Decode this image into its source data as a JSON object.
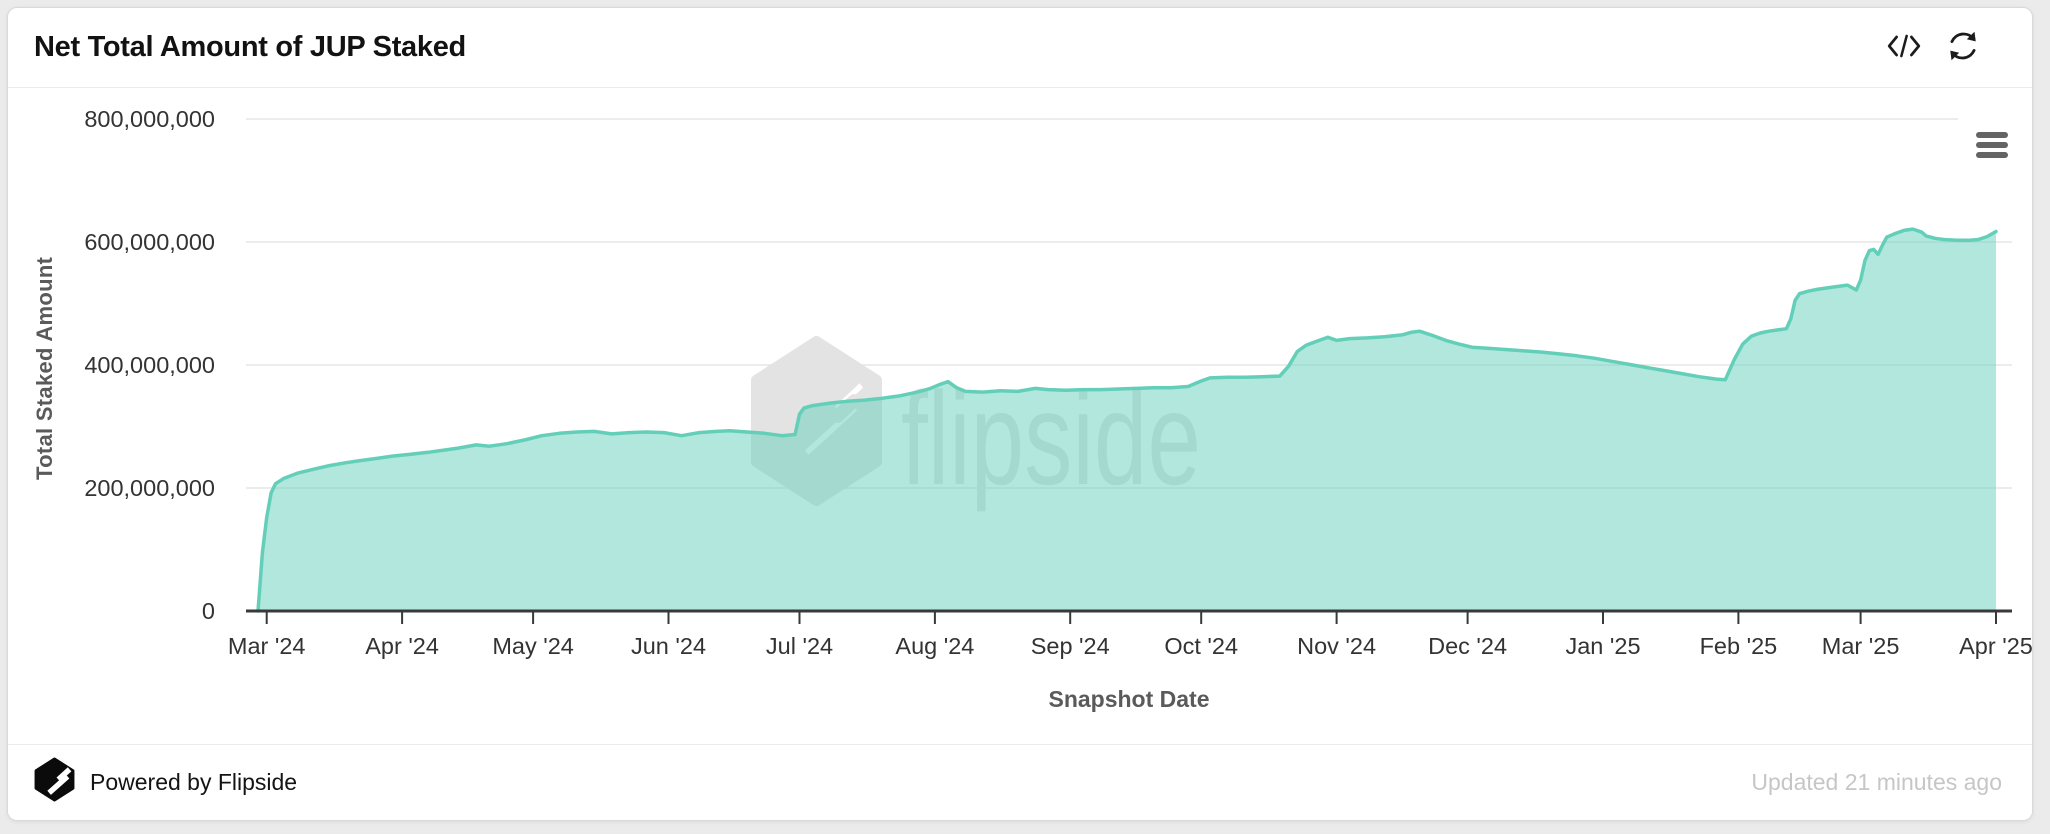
{
  "header": {
    "title": "Net Total Amount of JUP Staked"
  },
  "chart_data": {
    "type": "area",
    "title": "Net Total Amount of JUP Staked",
    "xlabel": "Snapshot Date",
    "ylabel": "Total Staked Amount",
    "ylim": [
      0,
      800000000
    ],
    "grid": true,
    "legend": false,
    "watermark": "flipside",
    "x_range": {
      "start": "2024-02-28",
      "end": "2025-04-01"
    },
    "x_ticks": [
      {
        "label": "Mar '24",
        "date": "2024-03-01"
      },
      {
        "label": "Apr '24",
        "date": "2024-04-01"
      },
      {
        "label": "May '24",
        "date": "2024-05-01"
      },
      {
        "label": "Jun '24",
        "date": "2024-06-01"
      },
      {
        "label": "Jul '24",
        "date": "2024-07-01"
      },
      {
        "label": "Aug '24",
        "date": "2024-08-01"
      },
      {
        "label": "Sep '24",
        "date": "2024-09-01"
      },
      {
        "label": "Oct '24",
        "date": "2024-10-01"
      },
      {
        "label": "Nov '24",
        "date": "2024-11-01"
      },
      {
        "label": "Dec '24",
        "date": "2024-12-01"
      },
      {
        "label": "Jan '25",
        "date": "2025-01-01"
      },
      {
        "label": "Feb '25",
        "date": "2025-02-01"
      },
      {
        "label": "Mar '25",
        "date": "2025-03-01"
      },
      {
        "label": "Apr '25",
        "date": "2025-04-01"
      }
    ],
    "y_ticks": [
      {
        "label": "0",
        "value": 0
      },
      {
        "label": "200,000,000",
        "value": 200000000
      },
      {
        "label": "400,000,000",
        "value": 400000000
      },
      {
        "label": "600,000,000",
        "value": 600000000
      },
      {
        "label": "800,000,000",
        "value": 800000000
      }
    ],
    "series": [
      {
        "name": "Total Staked Amount",
        "unit": "JUP",
        "points_unit": "millions_of_JUP",
        "line_color": "#63cfb9",
        "fill_color": "rgba(99,207,185,0.5)",
        "points": [
          [
            "2024-02-28",
            0
          ],
          [
            "2024-02-29",
            95
          ],
          [
            "2024-03-01",
            152
          ],
          [
            "2024-03-02",
            192
          ],
          [
            "2024-03-03",
            207
          ],
          [
            "2024-03-05",
            216
          ],
          [
            "2024-03-08",
            224
          ],
          [
            "2024-03-12",
            231
          ],
          [
            "2024-03-15",
            236
          ],
          [
            "2024-03-19",
            241
          ],
          [
            "2024-03-22",
            244
          ],
          [
            "2024-03-26",
            248
          ],
          [
            "2024-03-30",
            252
          ],
          [
            "2024-04-03",
            255
          ],
          [
            "2024-04-07",
            258
          ],
          [
            "2024-04-11",
            262
          ],
          [
            "2024-04-14",
            265
          ],
          [
            "2024-04-18",
            270
          ],
          [
            "2024-04-21",
            268
          ],
          [
            "2024-04-25",
            272
          ],
          [
            "2024-04-29",
            278
          ],
          [
            "2024-05-03",
            285
          ],
          [
            "2024-05-07",
            289
          ],
          [
            "2024-05-11",
            291
          ],
          [
            "2024-05-15",
            292
          ],
          [
            "2024-05-19",
            288
          ],
          [
            "2024-05-23",
            290
          ],
          [
            "2024-05-27",
            291
          ],
          [
            "2024-05-31",
            290
          ],
          [
            "2024-06-04",
            285
          ],
          [
            "2024-06-08",
            290
          ],
          [
            "2024-06-12",
            292
          ],
          [
            "2024-06-15",
            293
          ],
          [
            "2024-06-19",
            291
          ],
          [
            "2024-06-23",
            289
          ],
          [
            "2024-06-27",
            285
          ],
          [
            "2024-06-30",
            287
          ],
          [
            "2024-07-01",
            320
          ],
          [
            "2024-07-02",
            330
          ],
          [
            "2024-07-04",
            334
          ],
          [
            "2024-07-08",
            338
          ],
          [
            "2024-07-12",
            341
          ],
          [
            "2024-07-16",
            343
          ],
          [
            "2024-07-20",
            346
          ],
          [
            "2024-07-24",
            350
          ],
          [
            "2024-07-28",
            356
          ],
          [
            "2024-07-31",
            362
          ],
          [
            "2024-08-02",
            368
          ],
          [
            "2024-08-04",
            373
          ],
          [
            "2024-08-06",
            363
          ],
          [
            "2024-08-08",
            357
          ],
          [
            "2024-08-12",
            356
          ],
          [
            "2024-08-16",
            358
          ],
          [
            "2024-08-20",
            357
          ],
          [
            "2024-08-24",
            362
          ],
          [
            "2024-08-27",
            360
          ],
          [
            "2024-08-31",
            359
          ],
          [
            "2024-09-04",
            360
          ],
          [
            "2024-09-08",
            360
          ],
          [
            "2024-09-12",
            361
          ],
          [
            "2024-09-16",
            362
          ],
          [
            "2024-09-20",
            363
          ],
          [
            "2024-09-24",
            363
          ],
          [
            "2024-09-28",
            365
          ],
          [
            "2024-10-01",
            374
          ],
          [
            "2024-10-03",
            379
          ],
          [
            "2024-10-07",
            380
          ],
          [
            "2024-10-11",
            380
          ],
          [
            "2024-10-15",
            381
          ],
          [
            "2024-10-19",
            382
          ],
          [
            "2024-10-21",
            398
          ],
          [
            "2024-10-23",
            422
          ],
          [
            "2024-10-25",
            432
          ],
          [
            "2024-10-28",
            440
          ],
          [
            "2024-10-30",
            445
          ],
          [
            "2024-11-01",
            440
          ],
          [
            "2024-11-04",
            443
          ],
          [
            "2024-11-08",
            444
          ],
          [
            "2024-11-12",
            446
          ],
          [
            "2024-11-16",
            449
          ],
          [
            "2024-11-18",
            453
          ],
          [
            "2024-11-20",
            455
          ],
          [
            "2024-11-23",
            448
          ],
          [
            "2024-11-26",
            440
          ],
          [
            "2024-11-29",
            434
          ],
          [
            "2024-12-02",
            429
          ],
          [
            "2024-12-06",
            427
          ],
          [
            "2024-12-10",
            425
          ],
          [
            "2024-12-14",
            423
          ],
          [
            "2024-12-18",
            421
          ],
          [
            "2024-12-22",
            418
          ],
          [
            "2024-12-26",
            415
          ],
          [
            "2024-12-30",
            411
          ],
          [
            "2025-01-03",
            406
          ],
          [
            "2025-01-07",
            401
          ],
          [
            "2025-01-11",
            396
          ],
          [
            "2025-01-15",
            391
          ],
          [
            "2025-01-19",
            386
          ],
          [
            "2025-01-23",
            381
          ],
          [
            "2025-01-27",
            377
          ],
          [
            "2025-01-29",
            376
          ],
          [
            "2025-01-31",
            408
          ],
          [
            "2025-02-02",
            434
          ],
          [
            "2025-02-04",
            447
          ],
          [
            "2025-02-06",
            452
          ],
          [
            "2025-02-08",
            455
          ],
          [
            "2025-02-10",
            457
          ],
          [
            "2025-02-12",
            459
          ],
          [
            "2025-02-13",
            475
          ],
          [
            "2025-02-14",
            505
          ],
          [
            "2025-02-15",
            516
          ],
          [
            "2025-02-17",
            520
          ],
          [
            "2025-02-19",
            523
          ],
          [
            "2025-02-21",
            525
          ],
          [
            "2025-02-23",
            527
          ],
          [
            "2025-02-26",
            530
          ],
          [
            "2025-02-28",
            522
          ],
          [
            "2025-03-01",
            538
          ],
          [
            "2025-03-02",
            570
          ],
          [
            "2025-03-03",
            586
          ],
          [
            "2025-03-04",
            588
          ],
          [
            "2025-03-05",
            580
          ],
          [
            "2025-03-06",
            595
          ],
          [
            "2025-03-07",
            608
          ],
          [
            "2025-03-09",
            614
          ],
          [
            "2025-03-11",
            619
          ],
          [
            "2025-03-13",
            621
          ],
          [
            "2025-03-15",
            616
          ],
          [
            "2025-03-16",
            610
          ],
          [
            "2025-03-18",
            606
          ],
          [
            "2025-03-20",
            604
          ],
          [
            "2025-03-23",
            603
          ],
          [
            "2025-03-26",
            603
          ],
          [
            "2025-03-28",
            604
          ],
          [
            "2025-03-30",
            609
          ],
          [
            "2025-04-01",
            617
          ]
        ]
      }
    ],
    "colors": {
      "line": "#63cfb9",
      "fill": "rgba(99,207,185,0.5)",
      "gridline": "#e6e6e6",
      "axis": "#38393b",
      "tick_label": "#333333",
      "axis_title": "#5a5a5a",
      "watermark": "#e3e3e3"
    }
  },
  "footer": {
    "powered_by": "Powered by Flipside",
    "updated": "Updated 21 minutes ago"
  }
}
